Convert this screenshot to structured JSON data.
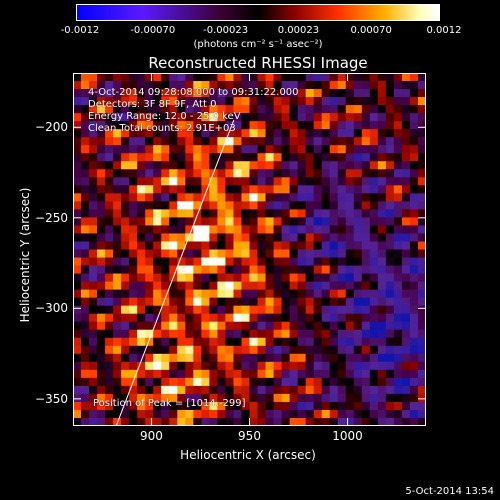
{
  "colorbar": {
    "ticks": [
      "-0.0012",
      "-0.00070",
      "-0.00023",
      "0.00023",
      "0.00070",
      "0.0012"
    ],
    "unit_label": "(photons cm⁻² s⁻¹ asec⁻²)"
  },
  "chart_data": {
    "type": "heatmap",
    "title": "Reconstructed RHESSI Image",
    "xlabel": "Heliocentric X (arcsec)",
    "ylabel": "Heliocentric Y (arcsec)",
    "xlim": [
      860,
      1040
    ],
    "ylim": [
      -365,
      -170
    ],
    "xticks": [
      "900",
      "950",
      "1000"
    ],
    "yticks": [
      "-200",
      "-250",
      "-300",
      "-350"
    ],
    "colorbar_range": [
      -0.0012,
      0.0012
    ],
    "limb_line": {
      "x": [
        882,
        942
      ],
      "y": [
        -365,
        -196
      ]
    },
    "annotations": [
      "4-Oct-2014 09:28:08.000 to 09:31:22.000",
      "Detectors: 3F 8F 9F, Att 0",
      "Energy Range: 12.0 - 25.0 keV",
      "Clean     Total counts: 2.91E+03",
      "Position of Peak = [1014,-299]"
    ]
  },
  "footer": "5-Oct-2014 13:54"
}
